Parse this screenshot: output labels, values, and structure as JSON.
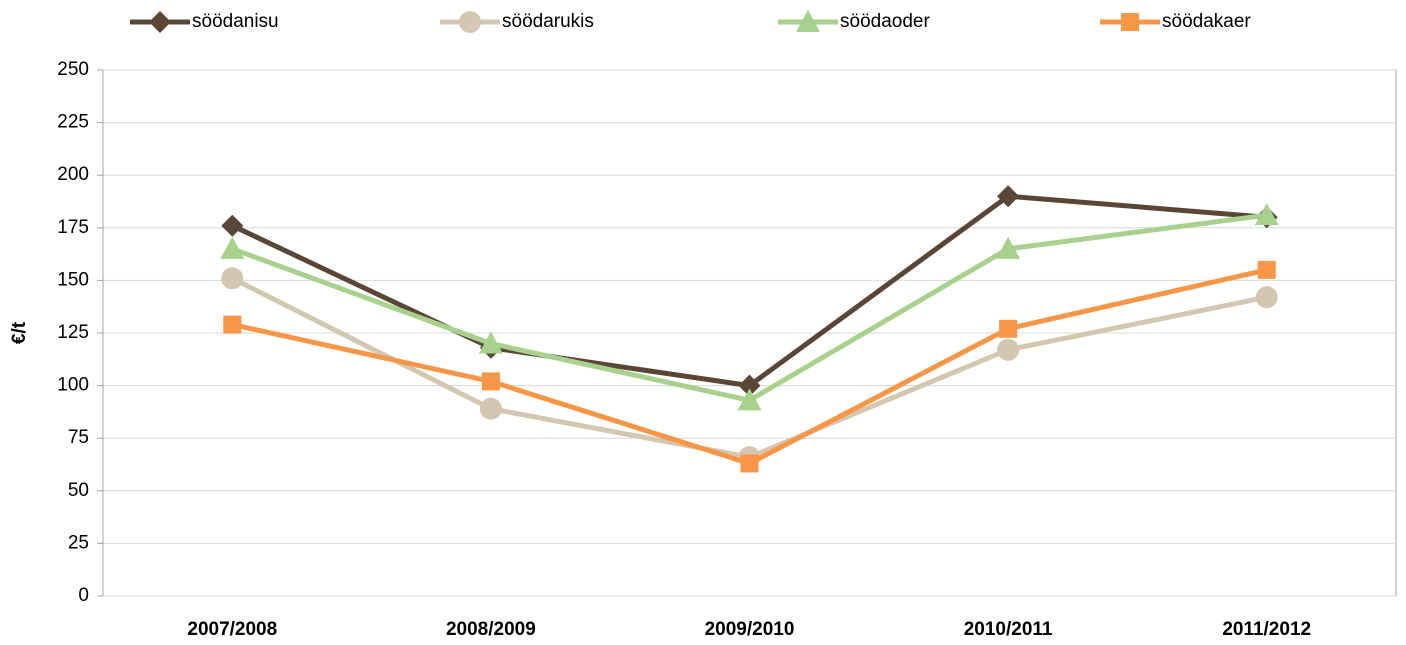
{
  "chart_data": {
    "type": "line",
    "y_label": "€/t",
    "categories": [
      "2007/2008",
      "2008/2009",
      "2009/2010",
      "2010/2011",
      "2011/2012"
    ],
    "series": [
      {
        "name": "söödanisu",
        "color": "#5a4636",
        "marker": "diamond",
        "values": [
          176,
          118,
          100,
          190,
          180
        ]
      },
      {
        "name": "söödarukis",
        "color": "#d5c6b0",
        "marker": "circle",
        "values": [
          151,
          89,
          66,
          117,
          142
        ]
      },
      {
        "name": "söödaoder",
        "color": "#a9d18e",
        "marker": "triangle",
        "values": [
          165,
          120,
          93,
          165,
          181
        ]
      },
      {
        "name": "söödakaer",
        "color": "#f79646",
        "marker": "square",
        "values": [
          129,
          102,
          63,
          127,
          155
        ]
      }
    ],
    "ylim": [
      0,
      250
    ],
    "yticks": [
      0,
      25,
      50,
      75,
      100,
      125,
      150,
      175,
      200,
      225,
      250
    ],
    "grid": true,
    "legend": "top"
  }
}
